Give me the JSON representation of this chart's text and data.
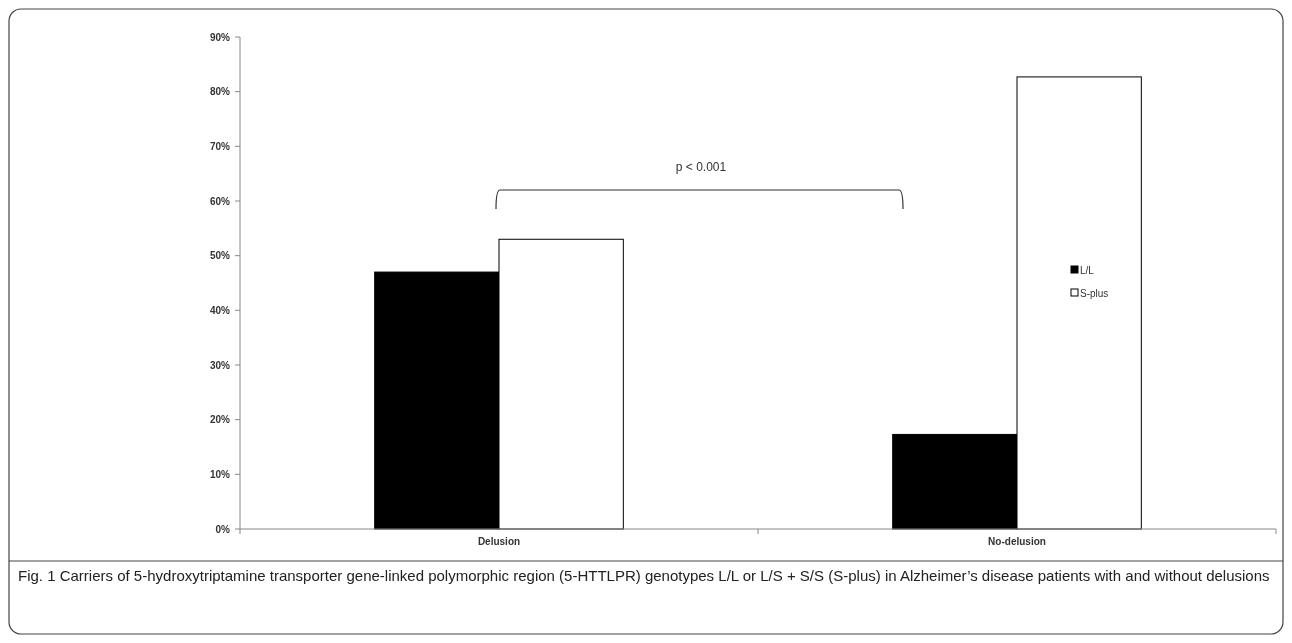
{
  "chart_data": {
    "type": "bar",
    "categories": [
      "Delusion",
      "No-delusion"
    ],
    "series": [
      {
        "name": "L/L",
        "color": "#000000",
        "values": [
          47,
          17.3
        ]
      },
      {
        "name": "S-plus",
        "color": "#ffffff",
        "values": [
          53,
          82.7
        ]
      }
    ],
    "ylim": [
      0,
      90
    ],
    "yticks": [
      {
        "value": 0,
        "label": "0%"
      },
      {
        "value": 10,
        "label": "10%"
      },
      {
        "value": 20,
        "label": "20%"
      },
      {
        "value": 30,
        "label": "30%"
      },
      {
        "value": 40,
        "label": "40%"
      },
      {
        "value": 50,
        "label": "50%"
      },
      {
        "value": 60,
        "label": "60%"
      },
      {
        "value": 70,
        "label": "70%"
      },
      {
        "value": 80,
        "label": "80%"
      },
      {
        "value": 90,
        "label": "90%"
      }
    ],
    "legend": "right",
    "grid": false,
    "annotations": [
      "p < 0.001",
      "Fig. 1 Carriers of 5-hydroxytriptamine transporter gene-linked polymorphic region (5-HTTLPR) genotypes L/L or L/S + S/S (S-plus) in Alzheimer’s disease patients with and without delusions"
    ]
  }
}
